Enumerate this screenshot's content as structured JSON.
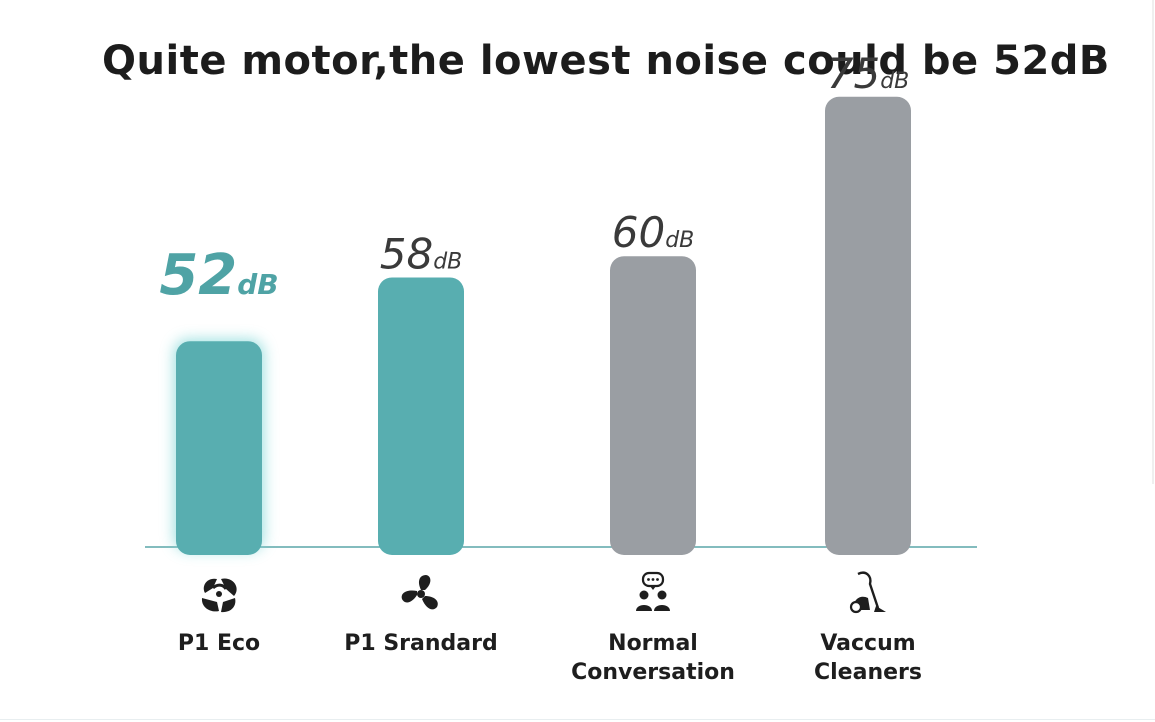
{
  "title": "Quite motor,the lowest noise could be 52dB",
  "colors": {
    "teal": "#58aeb0",
    "gray": "#9a9ea3",
    "axis": "#5aa6a8",
    "highlight_text": "#4fa3a5",
    "value_text": "#3a3a3a"
  },
  "chart_data": {
    "type": "bar",
    "unit": "dB",
    "categories": [
      "P1 Eco",
      "P1 Srandard",
      "Normal Conversation",
      "Vaccum Cleaners"
    ],
    "category_lines": [
      [
        "P1 Eco"
      ],
      [
        "P1 Srandard"
      ],
      [
        "Normal",
        "Conversation"
      ],
      [
        "Vaccum",
        "Cleaners"
      ]
    ],
    "values": [
      52,
      58,
      60,
      75
    ],
    "bar_colors": [
      "teal",
      "teal",
      "gray",
      "gray"
    ],
    "highlight": "P1 Eco",
    "icons": [
      "recycle-leaf-icon",
      "fan-icon",
      "conversation-icon",
      "vacuum-cleaner-icon"
    ],
    "grid": false,
    "legend": "none"
  }
}
